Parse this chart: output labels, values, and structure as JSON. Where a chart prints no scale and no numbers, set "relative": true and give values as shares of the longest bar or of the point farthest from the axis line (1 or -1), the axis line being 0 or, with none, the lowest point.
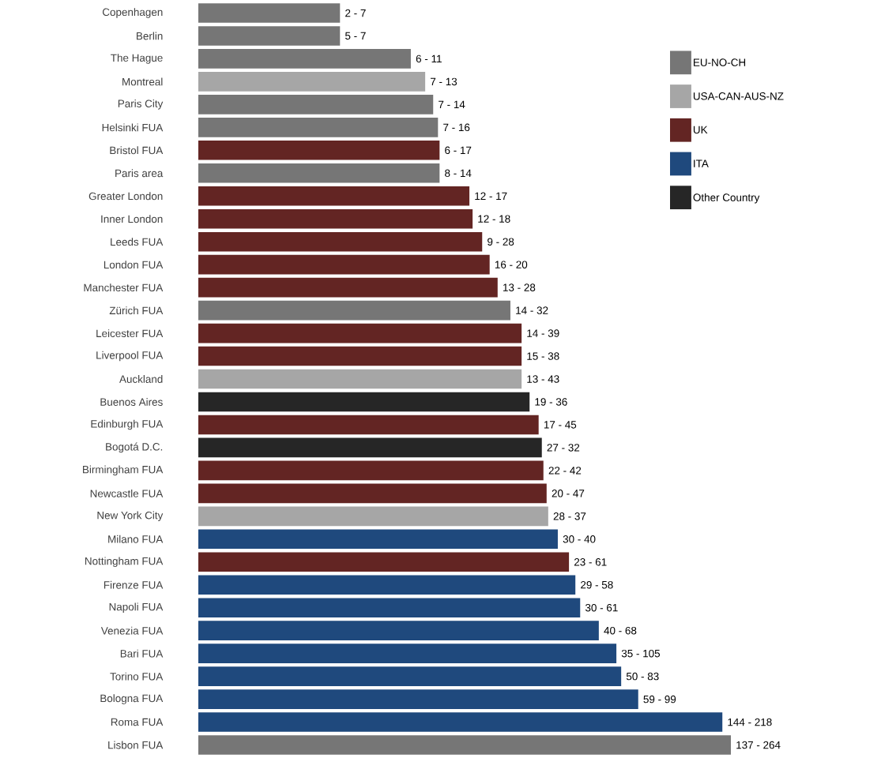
{
  "chart_data": {
    "type": "bar",
    "orientation": "horizontal",
    "relative": true,
    "legend": "top right",
    "categories": [
      "Copenhagen",
      "Berlin",
      "The Hague",
      "Montreal",
      "Paris City",
      "Helsinki FUA",
      "Bristol FUA",
      "Paris area",
      "Greater London",
      "Inner London",
      "Leeds FUA",
      "London FUA",
      "Manchester FUA",
      "Zürich FUA",
      "Leicester FUA",
      "Liverpool FUA",
      "Auckland",
      "Buenos Aires",
      "Edinburgh FUA",
      "Bogotá D.C.",
      "Birmingham FUA",
      "Newcastle FUA",
      "New York City",
      "Milano FUA",
      "Nottingham FUA",
      "Firenze FUA",
      "Napoli FUA",
      "Venezia FUA",
      "Bari FUA",
      "Torino FUA",
      "Bologna FUA",
      "Roma FUA",
      "Lisbon FUA"
    ],
    "series": [
      {
        "name": "EU-NO-CH",
        "color": "#767676",
        "values": [
          0.266,
          0.266,
          0.399,
          null,
          0.441,
          0.45,
          null,
          0.453,
          null,
          null,
          null,
          null,
          null,
          0.586,
          null,
          null,
          null,
          null,
          null,
          null,
          null,
          null,
          null,
          null,
          null,
          null,
          null,
          null,
          null,
          null,
          null,
          null,
          1
        ]
      },
      {
        "name": "USA-CAN-AUS-NZ",
        "color": "#a6a6a6",
        "values": [
          null,
          null,
          null,
          0.426,
          null,
          null,
          null,
          null,
          null,
          null,
          null,
          null,
          null,
          null,
          null,
          null,
          0.607,
          null,
          null,
          null,
          null,
          null,
          0.657,
          null,
          null,
          null,
          null,
          null,
          null,
          null,
          null,
          null,
          null
        ]
      },
      {
        "name": "UK",
        "color": "#632523",
        "values": [
          null,
          null,
          null,
          null,
          null,
          null,
          0.453,
          null,
          0.509,
          0.515,
          0.533,
          0.547,
          0.562,
          null,
          0.607,
          0.607,
          null,
          null,
          0.639,
          null,
          0.648,
          0.654,
          null,
          null,
          0.696,
          null,
          null,
          null,
          null,
          null,
          null,
          null,
          null
        ]
      },
      {
        "name": "ITA",
        "color": "#1f497d",
        "values": [
          null,
          null,
          null,
          null,
          null,
          null,
          null,
          null,
          null,
          null,
          null,
          null,
          null,
          null,
          null,
          null,
          null,
          null,
          null,
          null,
          null,
          null,
          null,
          0.675,
          null,
          0.708,
          0.717,
          0.752,
          0.785,
          0.794,
          0.826,
          0.984,
          null
        ]
      },
      {
        "name": "Other Country",
        "color": "#262626",
        "values": [
          null,
          null,
          null,
          null,
          null,
          null,
          null,
          null,
          null,
          null,
          null,
          null,
          null,
          null,
          null,
          null,
          null,
          0.622,
          null,
          0.645,
          null,
          null,
          null,
          null,
          null,
          null,
          null,
          null,
          null,
          null,
          null,
          null,
          null
        ]
      }
    ],
    "value_labels": [
      "2 - 7",
      "5 - 7",
      "6 - 11",
      "7 - 13",
      "7 - 14",
      "7 - 16",
      "6 - 17",
      "8 - 14",
      "12 - 17",
      "12 - 18",
      "9 - 28",
      "16 - 20",
      "13 - 28",
      "14 - 32",
      "14 - 39",
      "15 - 38",
      "13 - 43",
      "19 - 36",
      "17 - 45",
      "27 - 32",
      "22 - 42",
      "20 - 47",
      "28 - 37",
      "30 - 40",
      "23 - 61",
      "29 - 58",
      "30 - 61",
      "40 - 68",
      "35 - 105",
      "50 - 83",
      "59 - 99",
      "144 - 218",
      "137 - 264"
    ]
  }
}
